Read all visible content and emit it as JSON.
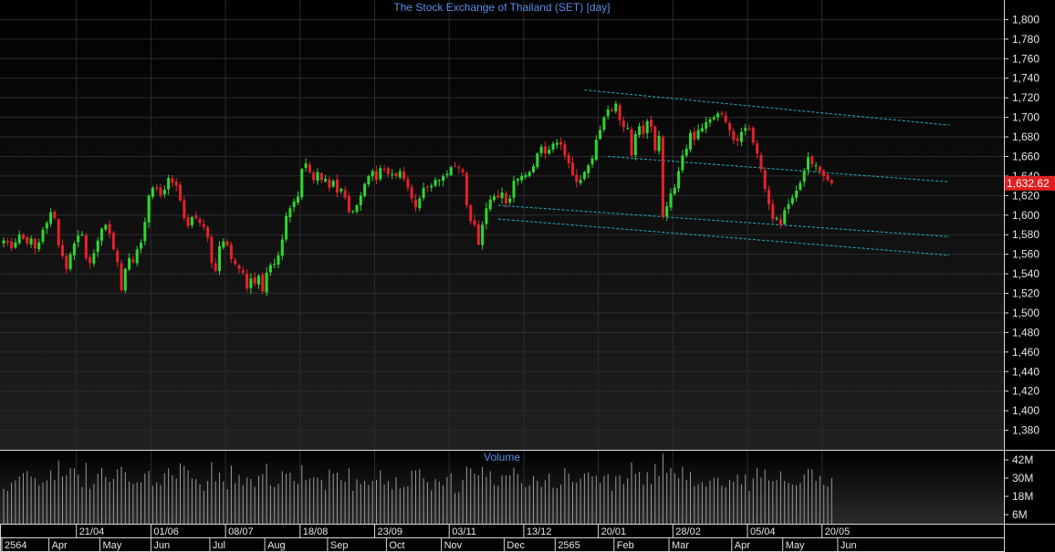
{
  "chart_data": {
    "type": "candlestick",
    "title": "The Stock Exchange of Thailand (SET) [day]",
    "volume_title": "Volume",
    "last_price_label": "1,632.62",
    "last_price": 1632.62,
    "ylim": [
      1360,
      1820
    ],
    "y_ticks": [
      {
        "v": 1800,
        "label": "1,800"
      },
      {
        "v": 1780,
        "label": "1,780"
      },
      {
        "v": 1760,
        "label": "1,760"
      },
      {
        "v": 1740,
        "label": "1,740"
      },
      {
        "v": 1720,
        "label": "1,720"
      },
      {
        "v": 1700,
        "label": "1,700"
      },
      {
        "v": 1680,
        "label": "1,680"
      },
      {
        "v": 1660,
        "label": "1,660"
      },
      {
        "v": 1640,
        "label": "1,640"
      },
      {
        "v": 1620,
        "label": "1,620"
      },
      {
        "v": 1600,
        "label": "1,600"
      },
      {
        "v": 1580,
        "label": "1,580"
      },
      {
        "v": 1560,
        "label": "1,560"
      },
      {
        "v": 1540,
        "label": "1,540"
      },
      {
        "v": 1520,
        "label": "1,520"
      },
      {
        "v": 1500,
        "label": "1,500"
      },
      {
        "v": 1480,
        "label": "1,480"
      },
      {
        "v": 1460,
        "label": "1,460"
      },
      {
        "v": 1440,
        "label": "1,440"
      },
      {
        "v": 1420,
        "label": "1,420"
      },
      {
        "v": 1400,
        "label": "1,400"
      },
      {
        "v": 1380,
        "label": "1,380"
      }
    ],
    "volume_ticks": [
      {
        "v": 42,
        "label": "42M"
      },
      {
        "v": 30,
        "label": "30M"
      },
      {
        "v": 18,
        "label": "18M"
      },
      {
        "v": 6,
        "label": "6M"
      }
    ],
    "volume_max": 48,
    "date_rows": {
      "top": [
        {
          "i": 19,
          "label": "21/04"
        },
        {
          "i": 38,
          "label": "01/06"
        },
        {
          "i": 57,
          "label": "08/07"
        },
        {
          "i": 76,
          "label": "18/08"
        },
        {
          "i": 95,
          "label": "23/09"
        },
        {
          "i": 114,
          "label": "03/11"
        },
        {
          "i": 133,
          "label": "13/12"
        },
        {
          "i": 152,
          "label": "20/01"
        },
        {
          "i": 171,
          "label": "28/02"
        },
        {
          "i": 190,
          "label": "05/04"
        },
        {
          "i": 209,
          "label": "20/05"
        }
      ],
      "bottom": [
        {
          "i": 0,
          "label": "2564"
        },
        {
          "i": 12,
          "label": "Apr"
        },
        {
          "i": 25,
          "label": "May"
        },
        {
          "i": 38,
          "label": "Jun"
        },
        {
          "i": 53,
          "label": "Jul"
        },
        {
          "i": 67,
          "label": "Aug"
        },
        {
          "i": 83,
          "label": "Sep"
        },
        {
          "i": 98,
          "label": "Oct"
        },
        {
          "i": 112,
          "label": "Nov"
        },
        {
          "i": 128,
          "label": "Dec"
        },
        {
          "i": 141,
          "label": "2565"
        },
        {
          "i": 156,
          "label": "Feb"
        },
        {
          "i": 170,
          "label": "Mar"
        },
        {
          "i": 186,
          "label": "Apr"
        },
        {
          "i": 199,
          "label": "May"
        },
        {
          "i": 213,
          "label": "Jun"
        }
      ]
    },
    "closes": [
      1574,
      1572,
      1566,
      1572,
      1580,
      1576,
      1571,
      1576,
      1566,
      1572,
      1585,
      1592,
      1603,
      1597,
      1569,
      1558,
      1545,
      1560,
      1571,
      1579,
      1580,
      1556,
      1551,
      1561,
      1574,
      1586,
      1590,
      1581,
      1565,
      1552,
      1523,
      1545,
      1556,
      1552,
      1565,
      1572,
      1593,
      1620,
      1628,
      1627,
      1620,
      1626,
      1638,
      1633,
      1630,
      1615,
      1597,
      1589,
      1598,
      1597,
      1592,
      1588,
      1577,
      1551,
      1543,
      1568,
      1573,
      1569,
      1555,
      1550,
      1545,
      1541,
      1525,
      1535,
      1530,
      1538,
      1522,
      1541,
      1549,
      1550,
      1559,
      1575,
      1599,
      1607,
      1614,
      1619,
      1647,
      1653,
      1644,
      1636,
      1644,
      1636,
      1637,
      1628,
      1635,
      1623,
      1627,
      1618,
      1603,
      1604,
      1610,
      1620,
      1632,
      1640,
      1645,
      1636,
      1648,
      1647,
      1642,
      1642,
      1640,
      1645,
      1637,
      1628,
      1617,
      1608,
      1617,
      1628,
      1628,
      1630,
      1636,
      1636,
      1640,
      1642,
      1649,
      1650,
      1648,
      1644,
      1610,
      1594,
      1590,
      1570,
      1590,
      1607,
      1616,
      1619,
      1618,
      1623,
      1612,
      1617,
      1635,
      1637,
      1640,
      1641,
      1644,
      1650,
      1663,
      1670,
      1663,
      1667,
      1673,
      1674,
      1672,
      1661,
      1653,
      1641,
      1634,
      1636,
      1644,
      1651,
      1658,
      1677,
      1687,
      1700,
      1708,
      1707,
      1714,
      1697,
      1690,
      1689,
      1661,
      1683,
      1691,
      1683,
      1696,
      1690,
      1666,
      1681,
      1598,
      1609,
      1622,
      1628,
      1645,
      1661,
      1668,
      1684,
      1677,
      1687,
      1689,
      1695,
      1698,
      1700,
      1704,
      1703,
      1695,
      1687,
      1677,
      1676,
      1685,
      1689,
      1688,
      1674,
      1663,
      1647,
      1627,
      1611,
      1596,
      1597,
      1590,
      1605,
      1611,
      1618,
      1625,
      1633,
      1645,
      1659,
      1652,
      1651,
      1645,
      1640,
      1636,
      1632.62
    ],
    "trend_lines": [
      {
        "from": {
          "i": 126,
          "v": 1596
        },
        "to": {
          "i": 241,
          "v": 1559
        }
      },
      {
        "from": {
          "i": 126,
          "v": 1610
        },
        "to": {
          "i": 241,
          "v": 1578
        }
      },
      {
        "from": {
          "i": 154,
          "v": 1660
        },
        "to": {
          "i": 241,
          "v": 1634
        }
      },
      {
        "from": {
          "i": 148,
          "v": 1728
        },
        "to": {
          "i": 241,
          "v": 1692
        }
      }
    ],
    "colors": {
      "up": "#2ed82e",
      "down": "#e8212a",
      "volume": "#9a9a9a",
      "trend": "#1fb0c7",
      "title": "#5b8fe6",
      "last_price_bg": "#e02020"
    }
  }
}
